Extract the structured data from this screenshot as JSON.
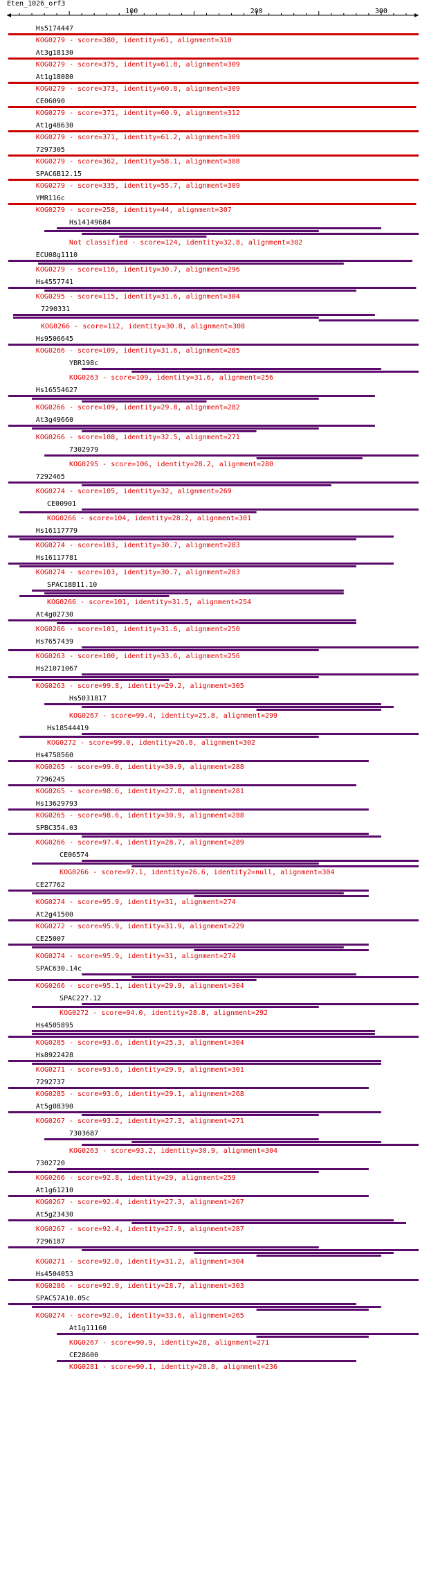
{
  "query": {
    "name": "Eten_1026_orf3",
    "length": 330
  },
  "axis": {
    "ticks": [
      100,
      200,
      300
    ]
  },
  "colors": {
    "best": "#cc0000",
    "other": "#5a0a6a",
    "axis": "#000000",
    "label": "#e00000",
    "name": "#000000"
  },
  "hits": [
    {
      "name": "Hs5174447",
      "desc": "KOG0279 - score=380, identity=61, alignment=310",
      "top": true,
      "segs": [
        [
          1,
          330
        ]
      ]
    },
    {
      "name": "At3g18130",
      "desc": "KOG0279 - score=375, identity=61.8, alignment=309",
      "top": true,
      "segs": [
        [
          1,
          330
        ]
      ]
    },
    {
      "name": "At1g18080",
      "desc": "KOG0279 - score=373, identity=60.8, alignment=309",
      "top": true,
      "segs": [
        [
          1,
          330
        ]
      ]
    },
    {
      "name": "CE06090",
      "desc": "KOG0279 - score=371, identity=60.9, alignment=312",
      "top": true,
      "segs": [
        [
          1,
          328
        ]
      ]
    },
    {
      "name": "At1g48630",
      "desc": "KOG0279 - score=371, identity=61.2, alignment=309",
      "top": true,
      "segs": [
        [
          1,
          330
        ]
      ]
    },
    {
      "name": "7297305",
      "desc": "KOG0279 - score=362, identity=58.1, alignment=308",
      "top": true,
      "segs": [
        [
          1,
          330
        ]
      ]
    },
    {
      "name": "SPAC6B12.15",
      "desc": "KOG0279 - score=335, identity=55.7, alignment=309",
      "top": true,
      "segs": [
        [
          1,
          330
        ]
      ]
    },
    {
      "name": "YMR116c",
      "desc": "KOG0279 - score=258, identity=44, alignment=307",
      "top": true,
      "segs": [
        [
          1,
          328
        ]
      ]
    },
    {
      "name": "Hs14149684",
      "desc": "Not classified - score=124, identity=32.8, alignment=302",
      "top": false,
      "segs": [
        [
          40,
          300
        ],
        [
          30,
          250
        ],
        [
          60,
          330
        ],
        [
          90,
          160
        ]
      ]
    },
    {
      "name": "ECU08g1110",
      "desc": "KOG0279 - score=116, identity=30.7, alignment=296",
      "top": false,
      "segs": [
        [
          1,
          325
        ],
        [
          25,
          270
        ]
      ]
    },
    {
      "name": "Hs4557741",
      "desc": "KOG0295 - score=115, identity=31.6, alignment=304",
      "top": false,
      "segs": [
        [
          1,
          328
        ],
        [
          30,
          280
        ]
      ]
    },
    {
      "name": "7290331",
      "desc": "KOG0266 - score=112, identity=30.8, alignment=308",
      "top": false,
      "segs": [
        [
          5,
          295
        ],
        [
          5,
          250
        ],
        [
          250,
          330
        ]
      ]
    },
    {
      "name": "Hs9506645",
      "desc": "KOG0266 - score=109, identity=31.6, alignment=285",
      "top": false,
      "segs": []
    },
    {
      "name": "YBR198c",
      "desc": "KOG0263 - score=109, identity=31.6, alignment=256",
      "top": false,
      "segs": [
        [
          60,
          300
        ],
        [
          100,
          330
        ]
      ]
    },
    {
      "name": "Hs16554627",
      "desc": "KOG0266 - score=109, identity=29.8, alignment=282",
      "top": false,
      "segs": [
        [
          1,
          295
        ],
        [
          20,
          250
        ],
        [
          60,
          160
        ]
      ]
    },
    {
      "name": "At3g49660",
      "desc": "KOG0266 - score=108, identity=32.5, alignment=271",
      "top": false,
      "segs": [
        [
          1,
          295
        ],
        [
          20,
          250
        ],
        [
          60,
          200
        ]
      ]
    },
    {
      "name": "7302979",
      "desc": "KOG0295 - score=106, identity=28.2, alignment=280",
      "top": false,
      "segs": [
        [
          30,
          330
        ],
        [
          200,
          285
        ]
      ]
    },
    {
      "name": "7292465",
      "desc": "KOG0274 - score=105, identity=32, alignment=269",
      "top": false,
      "segs": [
        [
          1,
          330
        ],
        [
          60,
          260
        ]
      ]
    },
    {
      "name": "CE00901",
      "desc": "KOG0266 - score=104, identity=28.2, alignment=301",
      "top": false,
      "segs": [
        [
          60,
          330
        ],
        [
          10,
          200
        ]
      ]
    },
    {
      "name": "Hs16117779",
      "desc": "KOG0274 - score=103, identity=30.7, alignment=283",
      "top": false,
      "segs": [
        [
          1,
          310
        ],
        [
          10,
          280
        ]
      ]
    },
    {
      "name": "Hs16117781",
      "desc": "KOG0274 - score=103, identity=30.7, alignment=283",
      "top": false,
      "segs": [
        [
          1,
          310
        ],
        [
          10,
          280
        ]
      ]
    },
    {
      "name": "SPAC18B11.10",
      "desc": "KOG0266 - score=101, identity=31.5, alignment=254",
      "top": false,
      "segs": [
        [
          20,
          270
        ],
        [
          30,
          270
        ],
        [
          10,
          130
        ]
      ]
    },
    {
      "name": "At4g02730",
      "desc": "KOG0266 - score=101, identity=31.6, alignment=250",
      "top": false,
      "segs": [
        [
          1,
          280
        ],
        [
          40,
          280
        ]
      ]
    },
    {
      "name": "Hs7657439",
      "desc": "KOG0263 - score=100, identity=33.6, alignment=256",
      "top": false,
      "segs": [
        [
          60,
          330
        ],
        [
          1,
          250
        ]
      ]
    },
    {
      "name": "Hs21071067",
      "desc": "KOG0263 - score=99.8, identity=29.2, alignment=305",
      "top": false,
      "segs": [
        [
          60,
          330
        ],
        [
          1,
          250
        ],
        [
          20,
          130
        ]
      ]
    },
    {
      "name": "Hs5031817",
      "desc": "KOG0267 - score=99.4, identity=25.8, alignment=299",
      "top": false,
      "segs": [
        [
          30,
          300
        ],
        [
          60,
          310
        ],
        [
          200,
          300
        ]
      ]
    },
    {
      "name": "Hs18544419",
      "desc": "KOG0272 - score=99.0, identity=26.8, alignment=302",
      "top": false,
      "segs": [
        [
          60,
          330
        ],
        [
          10,
          250
        ]
      ]
    },
    {
      "name": "Hs4758560",
      "desc": "KOG0265 - score=99.0, identity=30.9, alignment=288",
      "top": false,
      "segs": [
        [
          1,
          290
        ]
      ]
    },
    {
      "name": "7296245",
      "desc": "KOG0265 - score=98.6, identity=27.8, alignment=281",
      "top": false,
      "segs": [
        [
          1,
          280
        ]
      ]
    },
    {
      "name": "Hs13629793",
      "desc": "KOG0265 - score=98.6, identity=30.9, alignment=288",
      "top": false,
      "segs": [
        [
          1,
          290
        ]
      ]
    },
    {
      "name": "SPBC354.03",
      "desc": "KOG0266 - score=97.4, identity=28.7, alignment=289",
      "top": false,
      "segs": [
        [
          1,
          290
        ],
        [
          60,
          300
        ]
      ]
    },
    {
      "name": "CE06574",
      "desc": "KOG0266 - score=97.1, identity=26.6, identity2=null, alignment=304",
      "top": false,
      "segs": [
        [
          60,
          330
        ],
        [
          20,
          250
        ],
        [
          100,
          330
        ]
      ]
    },
    {
      "name": "CE27762",
      "desc": "KOG0274 - score=95.9, identity=31, alignment=274",
      "top": false,
      "segs": [
        [
          1,
          290
        ],
        [
          20,
          270
        ],
        [
          150,
          290
        ]
      ]
    },
    {
      "name": "At2g41500",
      "desc": "KOG0272 - score=95.9, identity=31.9, alignment=229",
      "top": false,
      "segs": []
    },
    {
      "name": "CE25007",
      "desc": "KOG0274 - score=95.9, identity=31, alignment=274",
      "top": false,
      "segs": [
        [
          1,
          290
        ],
        [
          20,
          270
        ],
        [
          150,
          290
        ]
      ]
    },
    {
      "name": "SPAC630.14c",
      "desc": "KOG0266 - score=95.1, identity=29.9, alignment=304",
      "top": false,
      "segs": [
        [
          60,
          280
        ],
        [
          100,
          330
        ],
        [
          1,
          200
        ]
      ]
    },
    {
      "name": "SPAC227.12",
      "desc": "KOG0272 - score=94.0, identity=28.8, alignment=292",
      "top": false,
      "segs": [
        [
          60,
          330
        ],
        [
          20,
          250
        ]
      ]
    },
    {
      "name": "Hs4505895",
      "desc": "KOG0285 - score=93.6, identity=25.3, alignment=304",
      "top": false,
      "segs": [
        [
          20,
          295
        ],
        [
          20,
          295
        ],
        [
          1,
          330
        ]
      ]
    },
    {
      "name": "Hs8922428",
      "desc": "KOG0271 - score=93.6, identity=29.9, alignment=301",
      "top": false,
      "segs": [
        [
          1,
          300
        ],
        [
          20,
          300
        ]
      ]
    },
    {
      "name": "7292737",
      "desc": "KOG0285 - score=93.6, identity=29.1, alignment=268",
      "top": false,
      "segs": [
        [
          1,
          290
        ]
      ]
    },
    {
      "name": "At5g08390",
      "desc": "KOG0267 - score=93.2, identity=27.3, alignment=271",
      "top": false,
      "segs": [
        [
          1,
          300
        ],
        [
          60,
          250
        ]
      ]
    },
    {
      "name": "7303687",
      "desc": "KOG0263 - score=93.2, identity=30.9, alignment=304",
      "top": false,
      "segs": [
        [
          30,
          250
        ],
        [
          100,
          300
        ],
        [
          60,
          330
        ]
      ]
    },
    {
      "name": "7302720",
      "desc": "KOG0266 - score=92.8, identity=29, alignment=259",
      "top": false,
      "segs": [
        [
          40,
          290
        ],
        [
          1,
          250
        ]
      ]
    },
    {
      "name": "At1g61210",
      "desc": "KOG0267 - score=92.4, identity=27.3, alignment=267",
      "top": false,
      "segs": [
        [
          1,
          290
        ]
      ]
    },
    {
      "name": "At5g23430",
      "desc": "KOG0267 - score=92.4, identity=27.9, alignment=287",
      "top": false,
      "segs": [
        [
          1,
          310
        ],
        [
          100,
          320
        ]
      ]
    },
    {
      "name": "7296187",
      "desc": "KOG0271 - score=92.0, identity=31.2, alignment=304",
      "top": false,
      "segs": [
        [
          1,
          250
        ],
        [
          60,
          330
        ],
        [
          150,
          310
        ],
        [
          200,
          300
        ]
      ]
    },
    {
      "name": "Hs4504053",
      "desc": "KOG0286 - score=92.0, identity=28.7, alignment=303",
      "top": false,
      "segs": [
        [
          1,
          330
        ]
      ]
    },
    {
      "name": "SPAC57A10.05c",
      "desc": "KOG0274 - score=92.0, identity=33.6, alignment=265",
      "top": false,
      "segs": [
        [
          1,
          280
        ],
        [
          20,
          300
        ],
        [
          200,
          290
        ]
      ]
    },
    {
      "name": "At1g11160",
      "desc": "KOG0267 - score=90.9, identity=28, alignment=271",
      "top": false,
      "segs": [
        [
          40,
          330
        ],
        [
          200,
          290
        ]
      ]
    },
    {
      "name": "CE28600",
      "desc": "KOG0281 - score=90.1, identity=28.8, alignment=236",
      "top": false,
      "segs": [
        [
          40,
          280
        ]
      ]
    }
  ]
}
